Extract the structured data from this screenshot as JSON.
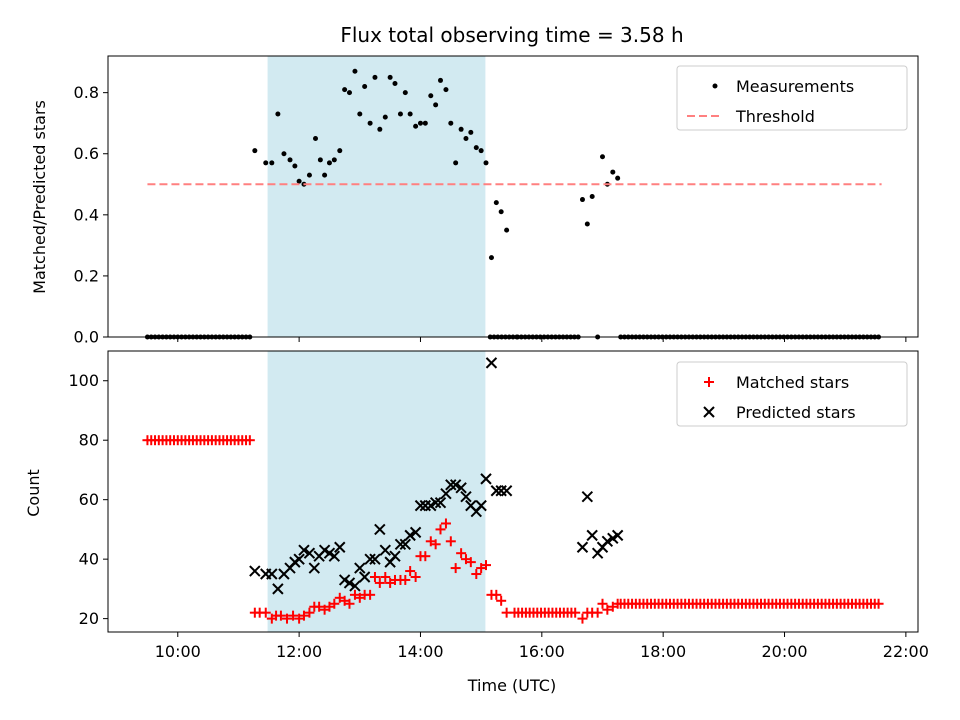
{
  "chart_data": {
    "type": "scatter",
    "title": "Flux total observing time = 3.58 h",
    "xlabel": "Time (UTC)",
    "x_unit": "hours UTC",
    "xlim": [
      8.85,
      22.2
    ],
    "xticks": [
      10,
      12,
      14,
      16,
      18,
      20,
      22
    ],
    "xtick_labels": [
      "10:00",
      "12:00",
      "14:00",
      "16:00",
      "18:00",
      "20:00",
      "22:00"
    ],
    "highlight_span": [
      11.48,
      15.07
    ],
    "highlight_color": "#add8e6",
    "top": {
      "ylabel": "Matched/Predicted stars",
      "ylim": [
        0,
        0.92
      ],
      "yticks": [
        0.0,
        0.2,
        0.4,
        0.6,
        0.8
      ],
      "ytick_labels": [
        "0.0",
        "0.2",
        "0.4",
        "0.6",
        "0.8"
      ],
      "legend": {
        "placement": "top-right",
        "entries": [
          "Measurements",
          "Threshold"
        ]
      },
      "series": [
        {
          "name": "Measurements",
          "kind": "scatter",
          "color": "#000000",
          "zero_ranges": [
            [
              9.5,
              11.2,
              0.0625
            ],
            [
              15.15,
              15.6,
              0.0625
            ],
            [
              15.6,
              16.6,
              0.0625
            ],
            [
              17.3,
              21.6,
              0.0625
            ]
          ],
          "points": [
            [
              11.27,
              0.61
            ],
            [
              11.45,
              0.57
            ],
            [
              11.55,
              0.57
            ],
            [
              11.65,
              0.73
            ],
            [
              11.75,
              0.6
            ],
            [
              11.85,
              0.58
            ],
            [
              11.93,
              0.56
            ],
            [
              12.0,
              0.51
            ],
            [
              12.08,
              0.5
            ],
            [
              12.17,
              0.53
            ],
            [
              12.27,
              0.65
            ],
            [
              12.35,
              0.58
            ],
            [
              12.42,
              0.53
            ],
            [
              12.5,
              0.57
            ],
            [
              12.58,
              0.58
            ],
            [
              12.67,
              0.61
            ],
            [
              12.75,
              0.81
            ],
            [
              12.83,
              0.8
            ],
            [
              12.92,
              0.87
            ],
            [
              13.0,
              0.73
            ],
            [
              13.08,
              0.82
            ],
            [
              13.17,
              0.7
            ],
            [
              13.25,
              0.85
            ],
            [
              13.33,
              0.68
            ],
            [
              13.42,
              0.72
            ],
            [
              13.5,
              0.85
            ],
            [
              13.58,
              0.83
            ],
            [
              13.67,
              0.73
            ],
            [
              13.75,
              0.8
            ],
            [
              13.83,
              0.73
            ],
            [
              13.92,
              0.69
            ],
            [
              14.0,
              0.7
            ],
            [
              14.08,
              0.7
            ],
            [
              14.17,
              0.79
            ],
            [
              14.25,
              0.76
            ],
            [
              14.33,
              0.84
            ],
            [
              14.42,
              0.81
            ],
            [
              14.5,
              0.7
            ],
            [
              14.58,
              0.57
            ],
            [
              14.67,
              0.68
            ],
            [
              14.75,
              0.65
            ],
            [
              14.83,
              0.67
            ],
            [
              14.92,
              0.62
            ],
            [
              15.0,
              0.61
            ],
            [
              15.08,
              0.57
            ],
            [
              15.17,
              0.26
            ],
            [
              15.25,
              0.44
            ],
            [
              15.33,
              0.41
            ],
            [
              15.42,
              0.35
            ],
            [
              16.67,
              0.45
            ],
            [
              16.75,
              0.37
            ],
            [
              16.83,
              0.46
            ],
            [
              16.92,
              0.0
            ],
            [
              17.0,
              0.59
            ],
            [
              17.08,
              0.5
            ],
            [
              17.17,
              0.54
            ],
            [
              17.25,
              0.52
            ]
          ]
        },
        {
          "name": "Threshold",
          "kind": "line",
          "color": "#ff8080",
          "dashed": true,
          "x": [
            9.5,
            21.6
          ],
          "y": [
            0.5,
            0.5
          ]
        }
      ]
    },
    "bottom": {
      "ylabel": "Count",
      "ylim": [
        15.5,
        110
      ],
      "yticks": [
        20,
        40,
        60,
        80,
        100
      ],
      "ytick_labels": [
        "20",
        "40",
        "60",
        "80",
        "100"
      ],
      "legend": {
        "placement": "top-right",
        "entries": [
          "Matched stars",
          "Predicted stars"
        ]
      },
      "series": [
        {
          "name": "Matched stars",
          "kind": "scatter",
          "marker": "plus",
          "color": "#ff0000",
          "const_ranges": [
            [
              9.5,
              11.2,
              0.0625,
              80
            ],
            [
              15.55,
              16.6,
              0.0625,
              22
            ],
            [
              17.3,
              21.6,
              0.0625,
              25
            ]
          ],
          "points": [
            [
              11.27,
              22
            ],
            [
              11.35,
              22
            ],
            [
              11.45,
              22
            ],
            [
              11.55,
              20
            ],
            [
              11.62,
              21
            ],
            [
              11.7,
              21
            ],
            [
              11.8,
              20
            ],
            [
              11.9,
              21
            ],
            [
              12.0,
              20
            ],
            [
              12.08,
              21
            ],
            [
              12.17,
              22
            ],
            [
              12.25,
              24
            ],
            [
              12.33,
              24
            ],
            [
              12.42,
              23
            ],
            [
              12.5,
              24
            ],
            [
              12.58,
              25
            ],
            [
              12.67,
              27
            ],
            [
              12.75,
              26
            ],
            [
              12.83,
              25
            ],
            [
              12.92,
              28
            ],
            [
              13.0,
              27
            ],
            [
              13.08,
              28
            ],
            [
              13.17,
              28
            ],
            [
              13.25,
              34
            ],
            [
              13.33,
              32
            ],
            [
              13.42,
              34
            ],
            [
              13.5,
              32
            ],
            [
              13.58,
              33
            ],
            [
              13.67,
              33
            ],
            [
              13.75,
              33
            ],
            [
              13.83,
              36
            ],
            [
              13.92,
              34
            ],
            [
              14.0,
              41
            ],
            [
              14.08,
              41
            ],
            [
              14.17,
              46
            ],
            [
              14.25,
              45
            ],
            [
              14.33,
              50
            ],
            [
              14.42,
              52
            ],
            [
              14.5,
              46
            ],
            [
              14.58,
              37
            ],
            [
              14.67,
              42
            ],
            [
              14.75,
              40
            ],
            [
              14.83,
              39
            ],
            [
              14.92,
              35
            ],
            [
              15.0,
              37
            ],
            [
              15.08,
              38
            ],
            [
              15.17,
              28
            ],
            [
              15.25,
              28
            ],
            [
              15.33,
              26
            ],
            [
              15.42,
              22
            ],
            [
              16.67,
              20
            ],
            [
              16.75,
              22
            ],
            [
              16.83,
              22
            ],
            [
              16.92,
              22
            ],
            [
              17.0,
              25
            ],
            [
              17.08,
              23
            ],
            [
              17.17,
              24
            ],
            [
              17.25,
              25
            ]
          ]
        },
        {
          "name": "Predicted stars",
          "kind": "scatter",
          "marker": "x",
          "color": "#000000",
          "points": [
            [
              11.27,
              36
            ],
            [
              11.45,
              35
            ],
            [
              11.55,
              35
            ],
            [
              11.65,
              30
            ],
            [
              11.75,
              35
            ],
            [
              11.85,
              37
            ],
            [
              11.93,
              39
            ],
            [
              12.0,
              40
            ],
            [
              12.08,
              43
            ],
            [
              12.17,
              42
            ],
            [
              12.25,
              37
            ],
            [
              12.33,
              41
            ],
            [
              12.42,
              43
            ],
            [
              12.5,
              42
            ],
            [
              12.58,
              41
            ],
            [
              12.67,
              44
            ],
            [
              12.75,
              33
            ],
            [
              12.83,
              32
            ],
            [
              12.92,
              31
            ],
            [
              13.0,
              37
            ],
            [
              13.08,
              34
            ],
            [
              13.17,
              40
            ],
            [
              13.25,
              40
            ],
            [
              13.33,
              50
            ],
            [
              13.42,
              43
            ],
            [
              13.5,
              39
            ],
            [
              13.58,
              41
            ],
            [
              13.67,
              45
            ],
            [
              13.75,
              45
            ],
            [
              13.83,
              48
            ],
            [
              13.92,
              49
            ],
            [
              14.0,
              58
            ],
            [
              14.08,
              58
            ],
            [
              14.17,
              58
            ],
            [
              14.25,
              59
            ],
            [
              14.33,
              59
            ],
            [
              14.42,
              62
            ],
            [
              14.5,
              65
            ],
            [
              14.58,
              65
            ],
            [
              14.67,
              64
            ],
            [
              14.75,
              61
            ],
            [
              14.83,
              58
            ],
            [
              14.92,
              56
            ],
            [
              15.0,
              58
            ],
            [
              15.08,
              67
            ],
            [
              15.17,
              106
            ],
            [
              15.25,
              63
            ],
            [
              15.33,
              63
            ],
            [
              15.42,
              63
            ],
            [
              16.67,
              44
            ],
            [
              16.75,
              61
            ],
            [
              16.83,
              48
            ],
            [
              16.92,
              42
            ],
            [
              17.0,
              44
            ],
            [
              17.08,
              46
            ],
            [
              17.17,
              47
            ],
            [
              17.25,
              48
            ]
          ]
        }
      ]
    }
  }
}
